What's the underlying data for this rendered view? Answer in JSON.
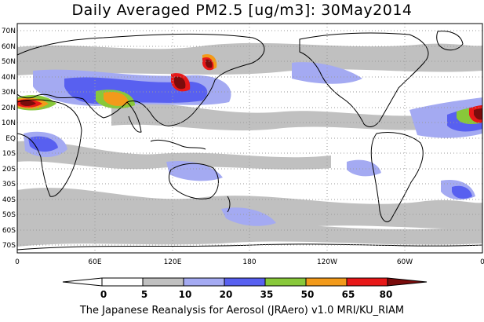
{
  "title": "Daily Averaged PM2.5 [ug/m3]: 30May2014",
  "footer": "The Japanese Reanalysis for Aerosol (JRAero) v1.0 MRI/KU_RIAM",
  "map": {
    "lat_labels": [
      "70N",
      "60N",
      "50N",
      "40N",
      "30N",
      "20N",
      "10N",
      "EQ",
      "10S",
      "20S",
      "30S",
      "40S",
      "50S",
      "60S",
      "70S"
    ],
    "lon_labels": [
      "0",
      "60E",
      "120E",
      "180",
      "120W",
      "60W",
      "0"
    ],
    "colors": {
      "land_outline": "#000000",
      "grid": "#9a9a9a",
      "c5_10": "#c0c0c0",
      "c10_20": "#a4aaf2",
      "c20_35": "#5860f0",
      "c35_50": "#88c83a",
      "c50_65": "#f29a1a",
      "c65_80": "#e81818",
      "c80_plus": "#7a0c0c"
    }
  },
  "colorbar": {
    "ticks": [
      "0",
      "5",
      "10",
      "20",
      "35",
      "50",
      "65",
      "80"
    ],
    "colors": [
      "#ffffff",
      "#c0c0c0",
      "#a4aaf2",
      "#5860f0",
      "#88c83a",
      "#f29a1a",
      "#e81818",
      "#7a0c0c"
    ]
  }
}
